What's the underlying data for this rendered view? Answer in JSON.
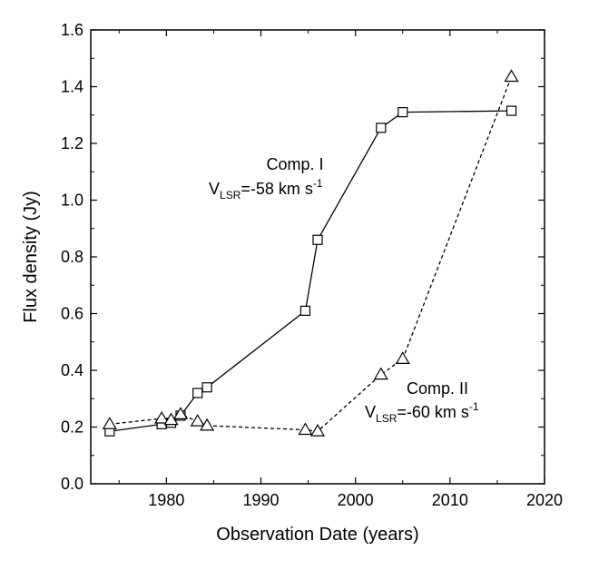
{
  "chart_data": {
    "type": "line",
    "title": "",
    "xlabel": "Observation Date (years)",
    "ylabel": "Flux density (Jy)",
    "xlim": [
      1972,
      2020
    ],
    "ylim": [
      0.0,
      1.6
    ],
    "x_ticks": [
      1980,
      1990,
      2000,
      2010,
      2020
    ],
    "y_ticks": [
      0.0,
      0.2,
      0.4,
      0.6,
      0.8,
      1.0,
      1.2,
      1.4,
      1.6
    ],
    "grid": false,
    "legend": "none",
    "series": [
      {
        "marker": "square",
        "line_style": "solid",
        "color": "#000000",
        "x": [
          1974.0,
          1979.5,
          1980.5,
          1981.5,
          1983.3,
          1984.3,
          1994.7,
          1996.0,
          2002.7,
          2005.0,
          2016.5
        ],
        "y": [
          0.185,
          0.21,
          0.215,
          0.24,
          0.32,
          0.34,
          0.61,
          0.86,
          1.255,
          1.31,
          1.315
        ]
      },
      {
        "marker": "triangle",
        "line_style": "dashed",
        "color": "#000000",
        "x": [
          1974.0,
          1979.5,
          1980.5,
          1981.5,
          1983.3,
          1984.3,
          1994.7,
          1996.0,
          2002.7,
          2005.0,
          2016.5
        ],
        "y": [
          0.21,
          0.23,
          0.225,
          0.245,
          0.22,
          0.205,
          0.19,
          0.185,
          0.385,
          0.44,
          1.435
        ]
      }
    ],
    "annotations": [
      {
        "line1": "Comp. I",
        "prefix": "V",
        "sub": "LSR",
        "value": "=-58 km s",
        "sup": "-1"
      },
      {
        "line1": "Comp. II",
        "prefix": "V",
        "sub": "LSR",
        "value": "=-60 km s",
        "sup": "-1"
      }
    ]
  }
}
